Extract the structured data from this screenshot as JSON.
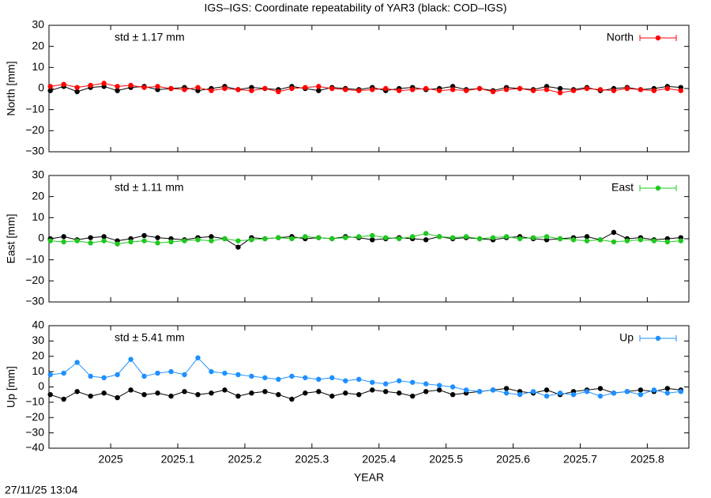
{
  "title": "IGS–IGS: Coordinate repeatability of YAR3 (black: COD–IGS)",
  "timestamp": "27/11/25 13:04",
  "chart_data": [
    {
      "type": "line",
      "y_label": "North [mm]",
      "annotation": "std ± 1.17 mm",
      "legend": "top right",
      "xlim": [
        2024.908,
        2025.862
      ],
      "ylim": [
        -30,
        30
      ],
      "yticks": [
        {
          "value": -30,
          "label": "−30"
        },
        {
          "value": -20,
          "label": "−20"
        },
        {
          "value": -10,
          "label": "−10"
        },
        0,
        10,
        20,
        30
      ],
      "x": [
        2024.91,
        2024.93,
        2024.95,
        2024.97,
        2024.99,
        2025.01,
        2025.03,
        2025.05,
        2025.07,
        2025.09,
        2025.11,
        2025.13,
        2025.15,
        2025.17,
        2025.19,
        2025.21,
        2025.23,
        2025.25,
        2025.27,
        2025.29,
        2025.31,
        2025.33,
        2025.35,
        2025.37,
        2025.39,
        2025.41,
        2025.43,
        2025.45,
        2025.47,
        2025.49,
        2025.51,
        2025.53,
        2025.55,
        2025.57,
        2025.59,
        2025.61,
        2025.63,
        2025.65,
        2025.67,
        2025.69,
        2025.71,
        2025.73,
        2025.75,
        2025.77,
        2025.79,
        2025.81,
        2025.83,
        2025.85
      ],
      "series": [
        {
          "color": "#000000",
          "values": [
            -1,
            1,
            -1.5,
            0.5,
            1,
            -1,
            0.5,
            1,
            -0.5,
            0,
            0.5,
            -1,
            0,
            1,
            -0.5,
            0.5,
            0,
            -0.5,
            1,
            0,
            -1,
            0.5,
            0,
            -0.5,
            0.5,
            -1,
            0,
            0.5,
            -0.5,
            0,
            1,
            -0.5,
            0,
            -1,
            0.5,
            0,
            -0.5,
            1,
            0,
            -0.5,
            0.5,
            -1,
            0,
            0.5,
            -0.5,
            0,
            1,
            0.5
          ]
        },
        {
          "name": "North",
          "color": "#ff0000",
          "values": [
            1,
            2,
            0.5,
            1.5,
            2.5,
            1,
            1.5,
            0.5,
            1,
            0,
            -0.5,
            0.5,
            -1,
            0,
            -0.5,
            -1,
            0,
            -1.5,
            0,
            0.5,
            1,
            0,
            -0.5,
            -1,
            -0.5,
            0,
            -1,
            -0.5,
            0,
            -1,
            -0.5,
            -1,
            0,
            -1.5,
            -0.5,
            0,
            -1,
            -0.5,
            -2,
            -1,
            0,
            -0.5,
            -1,
            0,
            -0.5,
            -1,
            0,
            -1
          ]
        }
      ]
    },
    {
      "type": "line",
      "y_label": "East [mm]",
      "annotation": "std ± 1.11 mm",
      "legend": "top right",
      "xlim": [
        2024.908,
        2025.862
      ],
      "ylim": [
        -30,
        30
      ],
      "yticks": [
        {
          "value": -30,
          "label": "−30"
        },
        {
          "value": -20,
          "label": "−20"
        },
        {
          "value": -10,
          "label": "−10"
        },
        0,
        10,
        20,
        30
      ],
      "x": [
        2024.91,
        2024.93,
        2024.95,
        2024.97,
        2024.99,
        2025.01,
        2025.03,
        2025.05,
        2025.07,
        2025.09,
        2025.11,
        2025.13,
        2025.15,
        2025.17,
        2025.19,
        2025.21,
        2025.23,
        2025.25,
        2025.27,
        2025.29,
        2025.31,
        2025.33,
        2025.35,
        2025.37,
        2025.39,
        2025.41,
        2025.43,
        2025.45,
        2025.47,
        2025.49,
        2025.51,
        2025.53,
        2025.55,
        2025.57,
        2025.59,
        2025.61,
        2025.63,
        2025.65,
        2025.67,
        2025.69,
        2025.71,
        2025.73,
        2025.75,
        2025.77,
        2025.79,
        2025.81,
        2025.83,
        2025.85
      ],
      "series": [
        {
          "color": "#000000",
          "values": [
            0,
            1,
            -0.5,
            0.5,
            1,
            -1,
            0,
            1.5,
            0.5,
            0,
            -0.5,
            0.5,
            1,
            0,
            -4,
            0.5,
            0,
            0.5,
            1,
            0,
            0.5,
            0,
            1,
            0.5,
            -0.5,
            0,
            0.5,
            0,
            -0.5,
            1,
            0,
            0.5,
            0,
            -0.5,
            0.5,
            1,
            0,
            -0.5,
            0,
            0.5,
            1,
            -0.5,
            3,
            0,
            0.5,
            -0.5,
            0,
            0.5
          ]
        },
        {
          "name": "East",
          "color": "#1ec81e",
          "values": [
            -1,
            -1.5,
            -1,
            -2,
            -1,
            -2.5,
            -1.5,
            -1,
            -2,
            -1.5,
            -1,
            -0.5,
            -1,
            0,
            -1,
            -0.5,
            0,
            0.5,
            0,
            1,
            0.5,
            0,
            0.5,
            1,
            1.5,
            0.5,
            0,
            1,
            2.5,
            1,
            0.5,
            1,
            0,
            0.5,
            1,
            0,
            0.5,
            1,
            0,
            -0.5,
            -1,
            -0.5,
            -1.5,
            -1,
            -0.5,
            -1,
            -1.5,
            -1
          ]
        }
      ]
    },
    {
      "type": "line",
      "y_label": "Up [mm]",
      "x_label": "YEAR",
      "annotation": "std ± 5.41 mm",
      "legend": "top right",
      "xlim": [
        2024.908,
        2025.862
      ],
      "ylim": [
        -40,
        40
      ],
      "xticks": [
        2025,
        2025.1,
        2025.2,
        2025.3,
        2025.4,
        2025.5,
        2025.6,
        2025.7,
        2025.8
      ],
      "yticks": [
        {
          "value": -40,
          "label": "−40"
        },
        {
          "value": -30,
          "label": "−30"
        },
        {
          "value": -20,
          "label": "−20"
        },
        {
          "value": -10,
          "label": "−10"
        },
        0,
        10,
        20,
        30,
        40
      ],
      "x": [
        2024.91,
        2024.93,
        2024.95,
        2024.97,
        2024.99,
        2025.01,
        2025.03,
        2025.05,
        2025.07,
        2025.09,
        2025.11,
        2025.13,
        2025.15,
        2025.17,
        2025.19,
        2025.21,
        2025.23,
        2025.25,
        2025.27,
        2025.29,
        2025.31,
        2025.33,
        2025.35,
        2025.37,
        2025.39,
        2025.41,
        2025.43,
        2025.45,
        2025.47,
        2025.49,
        2025.51,
        2025.53,
        2025.55,
        2025.57,
        2025.59,
        2025.61,
        2025.63,
        2025.65,
        2025.67,
        2025.69,
        2025.71,
        2025.73,
        2025.75,
        2025.77,
        2025.79,
        2025.81,
        2025.83,
        2025.85
      ],
      "series": [
        {
          "color": "#000000",
          "values": [
            -5,
            -8,
            -3,
            -6,
            -4,
            -7,
            -2,
            -5,
            -4,
            -6,
            -3,
            -5,
            -4,
            -2,
            -6,
            -4,
            -3,
            -5,
            -8,
            -4,
            -3,
            -6,
            -4,
            -5,
            -2,
            -3,
            -4,
            -6,
            -3,
            -2,
            -5,
            -4,
            -3,
            -2,
            -1,
            -3,
            -4,
            -2,
            -5,
            -3,
            -2,
            -1,
            -4,
            -3,
            -2,
            -3,
            -1,
            -2
          ]
        },
        {
          "name": "Up",
          "color": "#1e90ff",
          "values": [
            8,
            9,
            16,
            7,
            6,
            8,
            18,
            7,
            9,
            10,
            8,
            19,
            10,
            9,
            8,
            7,
            6,
            5,
            7,
            6,
            5,
            6,
            4,
            5,
            3,
            2,
            4,
            3,
            2,
            1,
            0,
            -2,
            -3,
            -2,
            -4,
            -5,
            -3,
            -6,
            -4,
            -5,
            -3,
            -6,
            -4,
            -3,
            -5,
            -2,
            -4,
            -3
          ]
        }
      ]
    }
  ]
}
